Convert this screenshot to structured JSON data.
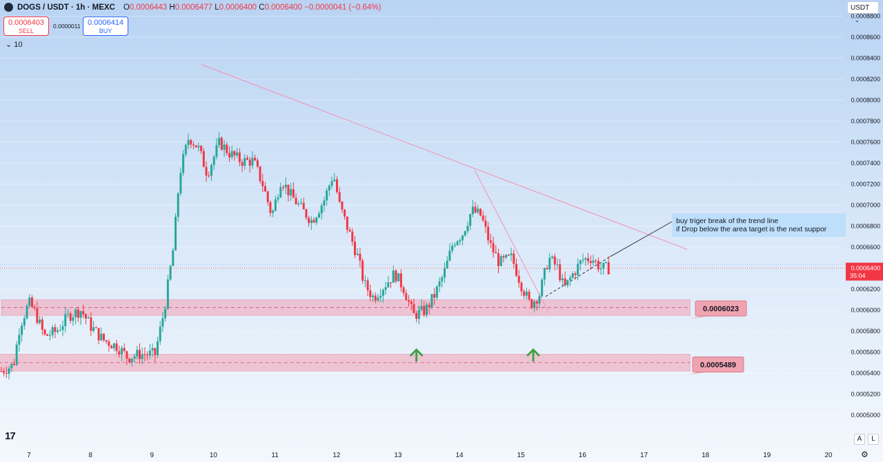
{
  "header": {
    "symbol": "DOGS / USDT · 1h · MEXC",
    "o_label": "O",
    "o": "0.0006443",
    "h_label": "H",
    "h": "0.0006477",
    "l_label": "L",
    "l": "0.0006400",
    "c_label": "C",
    "c": "0.0006400",
    "change": "−0.0000041 (−0.64%)"
  },
  "trade": {
    "sell_price": "0.0006403",
    "sell_label": "SELL",
    "spread": "0.0000011",
    "buy_price": "0.0006414",
    "buy_label": "BUY"
  },
  "indicator_toggle": "10",
  "currency": "USDT",
  "scale_buttons": {
    "auto": "A",
    "log": "L"
  },
  "colors": {
    "up": "#26a69a",
    "down": "#f23645",
    "zone": "#f2a7b8",
    "trend": "#f48fb1",
    "label_bg": "#f0a3b1"
  },
  "chart_data": {
    "type": "candlestick",
    "symbol": "DOGS / USDT",
    "interval": "1h",
    "exchange": "MEXC",
    "ylim": [
      0.00049,
      0.00088
    ],
    "y_ticks": [
      "0.0005000",
      "0.0005200",
      "0.0005400",
      "0.0005600",
      "0.0005800",
      "0.0006000",
      "0.0006200",
      "0.0006400",
      "0.0006600",
      "0.0006800",
      "0.0007000",
      "0.0007200",
      "0.0007400",
      "0.0007600",
      "0.0007800",
      "0.0008000",
      "0.0008200",
      "0.0008400",
      "0.0008600",
      "0.0008800"
    ],
    "x_ticks": [
      {
        "label": "7",
        "day": 7
      },
      {
        "label": "8",
        "day": 8
      },
      {
        "label": "9",
        "day": 9
      },
      {
        "label": "10",
        "day": 10
      },
      {
        "label": "11",
        "day": 11
      },
      {
        "label": "12",
        "day": 12
      },
      {
        "label": "13",
        "day": 13
      },
      {
        "label": "14",
        "day": 14
      },
      {
        "label": "15",
        "day": 15
      },
      {
        "label": "16",
        "day": 16
      },
      {
        "label": "17",
        "day": 17
      },
      {
        "label": "18",
        "day": 18
      },
      {
        "label": "19",
        "day": 19
      },
      {
        "label": "20",
        "day": 20
      }
    ],
    "last_price": {
      "value": 0.00064,
      "label": "0.0006400",
      "countdown": "35:04"
    },
    "price_path": [
      [
        6.55,
        0.000542
      ],
      [
        6.75,
        0.000548
      ],
      [
        6.85,
        0.000585
      ],
      [
        7.0,
        0.000607
      ],
      [
        7.1,
        0.000598
      ],
      [
        7.25,
        0.000575
      ],
      [
        7.45,
        0.00058
      ],
      [
        7.65,
        0.000595
      ],
      [
        7.85,
        0.0006
      ],
      [
        8.0,
        0.000585
      ],
      [
        8.2,
        0.000572
      ],
      [
        8.45,
        0.000565
      ],
      [
        8.6,
        0.000555
      ],
      [
        8.8,
        0.000558
      ],
      [
        9.05,
        0.000558
      ],
      [
        9.2,
        0.0006
      ],
      [
        9.35,
        0.00066
      ],
      [
        9.45,
        0.00073
      ],
      [
        9.6,
        0.000765
      ],
      [
        9.75,
        0.000755
      ],
      [
        9.9,
        0.00073
      ],
      [
        10.1,
        0.00076
      ],
      [
        10.25,
        0.00075
      ],
      [
        10.45,
        0.000742
      ],
      [
        10.65,
        0.000742
      ],
      [
        10.8,
        0.00072
      ],
      [
        10.95,
        0.00069
      ],
      [
        11.1,
        0.000725
      ],
      [
        11.25,
        0.00071
      ],
      [
        11.45,
        0.000695
      ],
      [
        11.6,
        0.000685
      ],
      [
        11.8,
        0.000705
      ],
      [
        11.95,
        0.00073
      ],
      [
        12.05,
        0.0007
      ],
      [
        12.2,
        0.000675
      ],
      [
        12.35,
        0.00065
      ],
      [
        12.45,
        0.000625
      ],
      [
        12.6,
        0.000612
      ],
      [
        12.8,
        0.000625
      ],
      [
        12.95,
        0.000635
      ],
      [
        13.1,
        0.00062
      ],
      [
        13.25,
        0.000595
      ],
      [
        13.45,
        0.0006
      ],
      [
        13.6,
        0.000615
      ],
      [
        13.75,
        0.000635
      ],
      [
        13.9,
        0.000665
      ],
      [
        14.05,
        0.000673
      ],
      [
        14.2,
        0.000695
      ],
      [
        14.35,
        0.00069
      ],
      [
        14.5,
        0.000662
      ],
      [
        14.65,
        0.000645
      ],
      [
        14.85,
        0.00065
      ],
      [
        15.0,
        0.000625
      ],
      [
        15.15,
        0.000605
      ],
      [
        15.3,
        0.000615
      ],
      [
        15.45,
        0.00065
      ],
      [
        15.6,
        0.00064
      ],
      [
        15.7,
        0.00062
      ],
      [
        15.85,
        0.000635
      ],
      [
        16.0,
        0.000648
      ],
      [
        16.15,
        0.00065
      ],
      [
        16.3,
        0.00064
      ],
      [
        16.45,
        0.00064
      ]
    ],
    "price_annotations": [
      {
        "value": 0.0006023,
        "label": "0.0006023"
      },
      {
        "value": 0.0005489,
        "label": "0.0005489"
      }
    ],
    "support_zones": [
      {
        "from_day": 6.55,
        "to_day": 17.75,
        "low": 0.000595,
        "high": 0.00061
      },
      {
        "from_day": 6.2,
        "to_day": 17.75,
        "low": 0.000542,
        "high": 0.000558
      }
    ],
    "trend_lines": [
      {
        "x1": 9.8,
        "y1": 0.000834,
        "x2": 17.7,
        "y2": 0.000658,
        "style": "solid"
      },
      {
        "x1": 14.25,
        "y1": 0.000733,
        "x2": 15.45,
        "y2": 0.000598,
        "style": "solid"
      },
      {
        "x1": 15.4,
        "y1": 0.000613,
        "x2": 16.45,
        "y2": 0.000651,
        "style": "dashed"
      }
    ],
    "up_arrows": [
      13.3,
      15.2
    ],
    "annotation_text": [
      "buy triger break of the trend line",
      "if Drop below the area target is the next suppor"
    ]
  }
}
